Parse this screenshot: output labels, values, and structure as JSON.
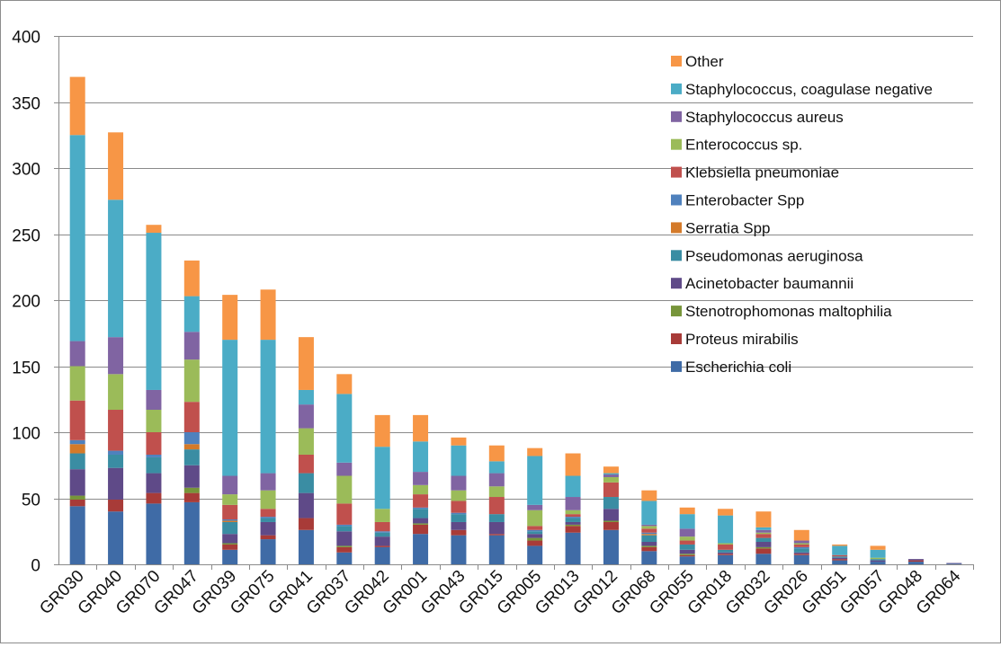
{
  "chart_data": {
    "type": "bar",
    "stacked": true,
    "title": "",
    "xlabel": "",
    "ylabel": "",
    "ylim": [
      0,
      400
    ],
    "yticks": [
      0,
      50,
      100,
      150,
      200,
      250,
      300,
      350,
      400
    ],
    "grid": true,
    "legend_position": "top-right",
    "categories": [
      "GR030",
      "GR040",
      "GR070",
      "GR047",
      "GR039",
      "GR075",
      "GR041",
      "GR037",
      "GR042",
      "GR001",
      "GR043",
      "GR015",
      "GR005",
      "GR013",
      "GR012",
      "GR068",
      "GR055",
      "GR018",
      "GR032",
      "GR026",
      "GR051",
      "GR057",
      "GR048",
      "GR064"
    ],
    "series": [
      {
        "name": "Escherichia coli",
        "color": "#3f6ba6",
        "values": [
          44,
          40,
          46,
          47,
          11,
          19,
          26,
          9,
          13,
          23,
          22,
          22,
          14,
          24,
          26,
          10,
          6,
          7,
          8,
          7,
          3,
          2,
          2,
          0.5
        ]
      },
      {
        "name": "Proteus mirabilis",
        "color": "#a83b38",
        "values": [
          5,
          9,
          8,
          7,
          4,
          3,
          9,
          4,
          1,
          7,
          4,
          1,
          4,
          5,
          6,
          3,
          1,
          1,
          4,
          1,
          1,
          0,
          1,
          0
        ]
      },
      {
        "name": "Stenotrophomonas maltophilia",
        "color": "#77953a",
        "values": [
          3,
          0,
          0,
          4,
          1,
          0,
          0,
          1,
          0,
          1,
          0,
          0,
          2,
          1,
          1,
          1,
          1,
          0,
          1,
          0,
          0,
          0,
          0,
          0
        ]
      },
      {
        "name": "Acinetobacter baumannii",
        "color": "#5f4a88",
        "values": [
          20,
          24,
          15,
          17,
          7,
          10,
          19,
          11,
          7,
          4,
          6,
          9,
          3,
          2,
          9,
          3,
          3,
          1,
          4,
          1,
          1,
          1,
          1,
          0.5
        ]
      },
      {
        "name": "Pseudomonas aeruginosa",
        "color": "#3a8da3",
        "values": [
          12,
          10,
          12,
          12,
          9,
          3,
          15,
          4,
          3,
          7,
          6,
          6,
          2,
          3,
          9,
          5,
          4,
          2,
          3,
          3,
          1,
          1,
          0,
          0
        ]
      },
      {
        "name": "Serratia Spp",
        "color": "#d47a2a",
        "values": [
          7,
          0,
          0,
          4,
          1,
          0,
          0,
          0,
          0,
          0,
          0,
          0,
          0,
          0,
          0,
          1,
          0,
          0,
          0,
          0,
          0,
          0,
          0,
          0
        ]
      },
      {
        "name": "Enterobacter Spp",
        "color": "#4f81bd",
        "values": [
          3,
          3,
          2,
          9,
          1,
          1,
          0,
          1,
          1,
          1,
          1,
          0,
          1,
          1,
          0,
          1,
          0,
          0,
          0,
          1,
          0,
          0,
          0,
          0
        ]
      },
      {
        "name": "Klebsiella pneumoniae",
        "color": "#c0504d",
        "values": [
          30,
          31,
          17,
          23,
          11,
          6,
          14,
          16,
          7,
          10,
          9,
          13,
          3,
          2,
          11,
          3,
          3,
          4,
          3,
          2,
          1,
          0,
          0,
          0
        ]
      },
      {
        "name": "Enterococcus sp.",
        "color": "#9bbb59",
        "values": [
          26,
          27,
          17,
          32,
          8,
          14,
          20,
          21,
          10,
          7,
          8,
          8,
          12,
          3,
          4,
          2,
          3,
          1,
          1,
          1,
          0,
          1,
          0,
          0
        ]
      },
      {
        "name": "Staphylococcus aureus",
        "color": "#8064a2",
        "values": [
          19,
          28,
          15,
          21,
          14,
          13,
          18,
          10,
          0,
          10,
          11,
          10,
          4,
          10,
          2,
          1,
          6,
          0,
          2,
          2,
          0,
          0,
          0,
          0
        ]
      },
      {
        "name": "Staphylococcus, coagulase negative",
        "color": "#4bacc6",
        "values": [
          156,
          104,
          119,
          27,
          103,
          101,
          11,
          52,
          47,
          23,
          23,
          9,
          37,
          16,
          1,
          18,
          11,
          21,
          2,
          0,
          7,
          6,
          0,
          0
        ]
      },
      {
        "name": "Other",
        "color": "#f79646",
        "values": [
          44,
          51,
          6,
          27,
          34,
          38,
          40,
          15,
          24,
          20,
          6,
          12,
          6,
          17,
          5,
          8,
          5,
          5,
          12,
          8,
          1,
          3,
          0,
          0
        ]
      }
    ]
  }
}
